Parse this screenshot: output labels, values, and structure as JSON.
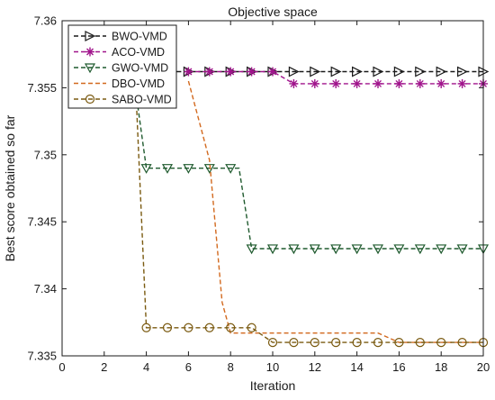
{
  "chart_data": {
    "type": "line",
    "title": "Objective space",
    "xlabel": "Iteration",
    "ylabel": "Best score obtained so far",
    "xlim": [
      0,
      20
    ],
    "ylim": [
      7.335,
      7.36
    ],
    "x_ticks": [
      "0",
      "2",
      "4",
      "6",
      "8",
      "10",
      "12",
      "14",
      "16",
      "18",
      "20"
    ],
    "y_ticks": [
      "7.335",
      "7.34",
      "7.345",
      "7.35",
      "7.355",
      "7.36"
    ],
    "grid": false,
    "legend_position": "top-left",
    "series": [
      {
        "name": "BWO-VMD",
        "color": "#1a1a1a",
        "marker": "triangle-right",
        "x": [
          1,
          2,
          3,
          4,
          5,
          6,
          7,
          8,
          9,
          10,
          11,
          12,
          13,
          14,
          15,
          16,
          17,
          18,
          19,
          20
        ],
        "values": [
          7.3562,
          7.3562,
          7.3562,
          7.3562,
          7.3562,
          7.3562,
          7.3562,
          7.3562,
          7.3562,
          7.3562,
          7.3562,
          7.3562,
          7.3562,
          7.3562,
          7.3562,
          7.3562,
          7.3562,
          7.3562,
          7.3562,
          7.3562
        ]
      },
      {
        "name": "ACO-VMD",
        "color": "#a0148c",
        "marker": "asterisk",
        "x": [
          6,
          7,
          8,
          9,
          10,
          11,
          12,
          13,
          14,
          15,
          16,
          17,
          18,
          19,
          20
        ],
        "values": [
          7.3562,
          7.3562,
          7.3562,
          7.3562,
          7.3562,
          7.3553,
          7.3553,
          7.3553,
          7.3553,
          7.3553,
          7.3553,
          7.3553,
          7.3553,
          7.3553,
          7.3553
        ]
      },
      {
        "name": "GWO-VMD",
        "color": "#1f5a2e",
        "marker": "triangle-down",
        "x": [
          3.5,
          4,
          5,
          6,
          7,
          8,
          8.4,
          9,
          10,
          11,
          12,
          13,
          14,
          15,
          16,
          17,
          18,
          19,
          20
        ],
        "values": [
          7.3547,
          7.349,
          7.349,
          7.349,
          7.349,
          7.349,
          7.349,
          7.343,
          7.343,
          7.343,
          7.343,
          7.343,
          7.343,
          7.343,
          7.343,
          7.343,
          7.343,
          7.343,
          7.343
        ]
      },
      {
        "name": "DBO-VMD",
        "color": "#d2691e",
        "marker": "none",
        "x": [
          6,
          7,
          7.6,
          8,
          9,
          10,
          15,
          16,
          17,
          18,
          19,
          20
        ],
        "values": [
          7.3555,
          7.3496,
          7.339,
          7.3367,
          7.3367,
          7.3367,
          7.3367,
          7.336,
          7.336,
          7.336,
          7.336,
          7.336
        ]
      },
      {
        "name": "SABO-VMD",
        "color": "#7a5a10",
        "marker": "circle",
        "x": [
          3.5,
          4,
          5,
          6,
          7,
          8,
          9,
          10,
          11,
          12,
          13,
          14,
          15,
          16,
          17,
          18,
          19,
          20
        ],
        "values": [
          7.3549,
          7.3371,
          7.3371,
          7.3371,
          7.3371,
          7.3371,
          7.3371,
          7.336,
          7.336,
          7.336,
          7.336,
          7.336,
          7.336,
          7.336,
          7.336,
          7.336,
          7.336,
          7.336
        ]
      }
    ]
  }
}
